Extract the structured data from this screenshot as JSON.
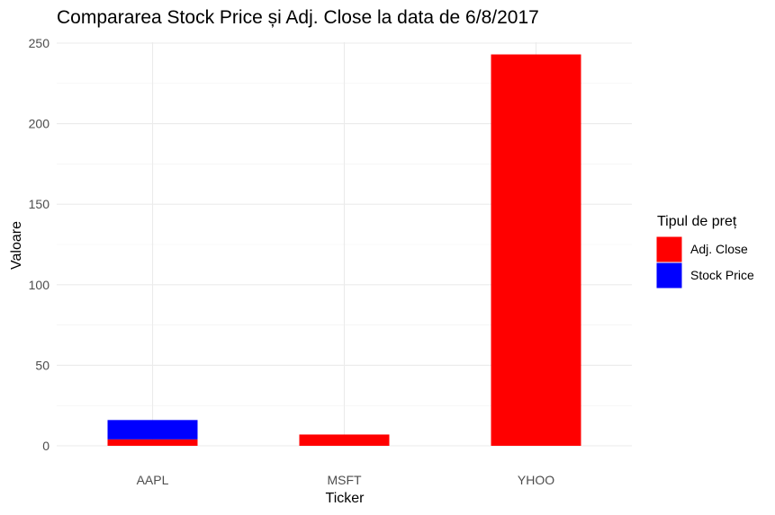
{
  "chart_data": {
    "type": "bar",
    "stacked": true,
    "title": "Compararea Stock Price și Adj. Close la data de 6/8/2017",
    "xlabel": "Ticker",
    "ylabel": "Valoare",
    "categories": [
      "AAPL",
      "MSFT",
      "YHOO"
    ],
    "series": [
      {
        "name": "Adj. Close",
        "color": "#ff0000",
        "values": [
          4,
          7,
          243
        ]
      },
      {
        "name": "Stock Price",
        "color": "#0000ff",
        "values": [
          12,
          0,
          0
        ]
      }
    ],
    "ylim": [
      0,
      250
    ],
    "yticks": [
      0,
      50,
      100,
      150,
      200,
      250
    ],
    "grid": true,
    "legend": {
      "title": "Tipul de preț",
      "placement": "right",
      "items": [
        "Adj. Close",
        "Stock Price"
      ]
    }
  }
}
